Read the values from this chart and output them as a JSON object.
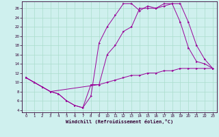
{
  "xlabel": "Windchill (Refroidissement éolien,°C)",
  "ylabel": "",
  "bg_color": "#cff0ee",
  "line_color": "#990099",
  "grid_color": "#aaddcc",
  "xlim": [
    -0.5,
    23.5
  ],
  "ylim": [
    3.5,
    27.5
  ],
  "yticks": [
    4,
    6,
    8,
    10,
    12,
    14,
    16,
    18,
    20,
    22,
    24,
    26
  ],
  "xticks": [
    0,
    1,
    2,
    3,
    4,
    5,
    6,
    7,
    8,
    9,
    10,
    11,
    12,
    13,
    14,
    15,
    16,
    17,
    18,
    19,
    20,
    21,
    22,
    23
  ],
  "line1_x": [
    0,
    1,
    2,
    3,
    4,
    5,
    6,
    7,
    8,
    9,
    10,
    11,
    12,
    13,
    14,
    15,
    16,
    17,
    18,
    19,
    20,
    21,
    22,
    23
  ],
  "line1_y": [
    11,
    10,
    9,
    8,
    7.5,
    6,
    5,
    4.5,
    9.5,
    9.5,
    10,
    10.5,
    11,
    11.5,
    11.5,
    12,
    12,
    12.5,
    12.5,
    13,
    13,
    13,
    13,
    13
  ],
  "line2_x": [
    0,
    1,
    2,
    3,
    4,
    5,
    6,
    7,
    8,
    9,
    10,
    11,
    12,
    13,
    14,
    15,
    16,
    17,
    18,
    19,
    20,
    21,
    22,
    23
  ],
  "line2_y": [
    11,
    10,
    9,
    8,
    7.5,
    6,
    5,
    4.5,
    7,
    18.5,
    22,
    24.5,
    27,
    27,
    25.5,
    26.5,
    26,
    27,
    27,
    23,
    17.5,
    14.5,
    14,
    13
  ],
  "line3_x": [
    0,
    1,
    2,
    3,
    9,
    10,
    11,
    12,
    13,
    14,
    15,
    16,
    17,
    18,
    19,
    20,
    21,
    22,
    23
  ],
  "line3_y": [
    11,
    10,
    9,
    8,
    9.5,
    16,
    18,
    21,
    22,
    26,
    26,
    26,
    26.5,
    27,
    27,
    23,
    18,
    15,
    13
  ]
}
